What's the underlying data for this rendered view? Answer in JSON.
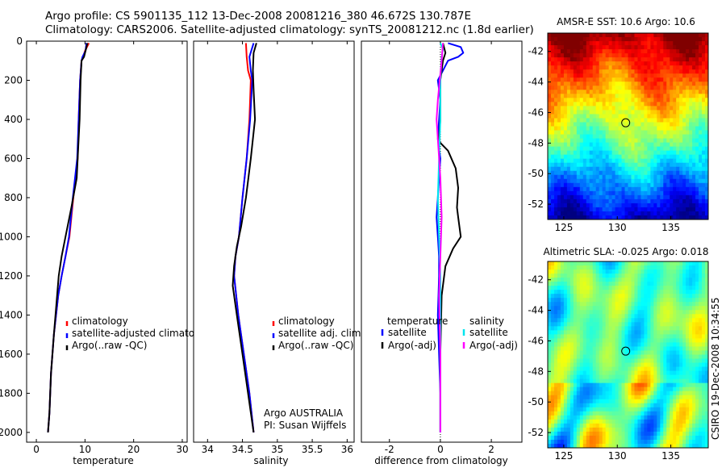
{
  "header": {
    "line1": "Argo profile: CS 5901135_112 13-Dec-2008 20081216_380 46.672S 130.787E",
    "line2": "Climatology: CARS2006. Satellite-adjusted climatology: synTS_20081212.nc (1.8d earlier)"
  },
  "side_label": "CSIRO 19-Dec-2008 10:34:55",
  "colors": {
    "clim": "#ff0000",
    "sat": "#0000ff",
    "argo": "#000000",
    "salsat": "#00e5ee",
    "salargo": "#ff00ff"
  },
  "chart_data": [
    {
      "type": "line",
      "id": "temperature",
      "xlabel": "temperature",
      "xlim": [
        -2,
        31
      ],
      "ylim": [
        0,
        2050
      ],
      "yreverse": true,
      "xticks": [
        "0",
        "10",
        "20",
        "30"
      ],
      "xtick_values": [
        0,
        10,
        20,
        30
      ],
      "yticks": [
        "0",
        "200",
        "400",
        "600",
        "800",
        "1000",
        "1200",
        "1400",
        "1600",
        "1800",
        "2000"
      ],
      "ytick_values": [
        0,
        200,
        400,
        600,
        800,
        1000,
        1200,
        1400,
        1600,
        1800,
        2000
      ],
      "legend": [
        "climatology",
        "satellite-adjusted climatology",
        "Argo(..raw -QC)"
      ],
      "series": [
        {
          "name": "climatology",
          "color": "clim",
          "x": [
            10.8,
            10.0,
            9.6,
            9.3,
            9.0,
            8.7,
            8.5,
            7.6,
            6.8,
            6.0,
            5.2,
            4.5,
            3.6,
            3.0,
            2.7,
            2.4
          ],
          "y": [
            10,
            50,
            80,
            100,
            200,
            400,
            600,
            800,
            1000,
            1100,
            1200,
            1300,
            1500,
            1700,
            1900,
            2000
          ]
        },
        {
          "name": "satellite-adjusted climatology",
          "color": "sat",
          "x": [
            10.3,
            10.1,
            9.5,
            9.3,
            9.0,
            8.7,
            8.4,
            7.5,
            6.7,
            6.0,
            5.2,
            4.5,
            3.6,
            3.0,
            2.7,
            2.4
          ],
          "y": [
            10,
            50,
            80,
            100,
            200,
            400,
            600,
            800,
            1000,
            1100,
            1200,
            1300,
            1500,
            1700,
            1900,
            2000
          ]
        },
        {
          "name": "Argo(..raw -QC)",
          "color": "argo",
          "x": [
            10.5,
            10.2,
            9.8,
            9.3,
            9.1,
            8.9,
            8.6,
            8.3,
            7.2,
            6.0,
            5.2,
            4.6,
            3.6,
            3.0,
            2.7,
            2.4
          ],
          "y": [
            10,
            40,
            80,
            100,
            200,
            400,
            550,
            700,
            850,
            1000,
            1100,
            1200,
            1500,
            1700,
            1900,
            2000
          ]
        }
      ]
    },
    {
      "type": "line",
      "id": "salinity",
      "xlabel": "salinity",
      "xlim": [
        33.8,
        36.1
      ],
      "ylim": [
        0,
        2050
      ],
      "yreverse": true,
      "xticks": [
        "34",
        "34.5",
        "35",
        "35.5",
        "36"
      ],
      "xtick_values": [
        34,
        34.5,
        35,
        35.5,
        36
      ],
      "legend": [
        "climatology",
        "satellite adj. clim.",
        "Argo(..raw -QC)"
      ],
      "annotation": [
        "Argo AUSTRALIA",
        "PI: Susan Wijffels"
      ],
      "series": [
        {
          "name": "climatology",
          "color": "clim",
          "x": [
            34.55,
            34.56,
            34.58,
            34.62,
            34.6,
            34.56,
            34.5,
            34.45,
            34.4,
            34.38,
            34.44,
            34.52,
            34.6,
            34.66
          ],
          "y": [
            10,
            80,
            150,
            200,
            400,
            600,
            800,
            1000,
            1100,
            1200,
            1400,
            1600,
            1800,
            2000
          ]
        },
        {
          "name": "satellite adj. clim.",
          "color": "sat",
          "x": [
            34.66,
            34.6,
            34.62,
            34.64,
            34.61,
            34.56,
            34.5,
            34.45,
            34.4,
            34.38,
            34.44,
            34.52,
            34.6,
            34.66
          ],
          "y": [
            10,
            80,
            150,
            200,
            400,
            600,
            800,
            1000,
            1100,
            1200,
            1400,
            1600,
            1800,
            2000
          ]
        },
        {
          "name": "Argo(..raw -QC)",
          "color": "argo",
          "x": [
            34.7,
            34.66,
            34.65,
            34.66,
            34.68,
            34.62,
            34.55,
            34.48,
            34.42,
            34.38,
            34.36,
            34.42,
            34.5,
            34.58,
            34.66
          ],
          "y": [
            10,
            60,
            150,
            250,
            400,
            600,
            800,
            950,
            1050,
            1150,
            1250,
            1400,
            1600,
            1800,
            2000
          ]
        }
      ]
    },
    {
      "type": "line",
      "id": "difference",
      "xlabel": "difference from climatology",
      "xlim": [
        -3.1,
        3.2
      ],
      "ylim": [
        0,
        2050
      ],
      "yreverse": true,
      "xticks": [
        "-2",
        "0",
        "2"
      ],
      "xtick_values": [
        -2,
        0,
        2
      ],
      "legend_temperature": [
        "temperature",
        "satellite",
        "Argo(-adj)"
      ],
      "legend_salinity": [
        "salinity",
        "satellite",
        "Argo(-adj)"
      ],
      "series": [
        {
          "name": "temperature satellite",
          "color": "sat",
          "x": [
            0.3,
            0.8,
            0.9,
            0.7,
            0.3,
            0.1,
            -0.1,
            0.0,
            -0.1,
            0.0,
            -0.1,
            -0.15,
            -0.1,
            -0.05,
            -0.05,
            -0.1,
            -0.05,
            0.0,
            0.0
          ],
          "y": [
            10,
            30,
            60,
            80,
            100,
            150,
            200,
            300,
            500,
            600,
            800,
            900,
            1000,
            1100,
            1200,
            1400,
            1600,
            1800,
            2000
          ]
        },
        {
          "name": "temperature Argo(-adj)",
          "color": "argo",
          "x": [
            0.1,
            0.2,
            0.1,
            0.0,
            0.0,
            -0.05,
            0.0,
            0.3,
            0.6,
            0.7,
            0.65,
            0.7,
            0.8,
            0.5,
            0.2,
            0.05,
            0.0,
            0.0
          ],
          "y": [
            10,
            60,
            100,
            200,
            400,
            500,
            520,
            560,
            650,
            750,
            850,
            900,
            1000,
            1060,
            1150,
            1300,
            1600,
            2000
          ]
        },
        {
          "name": "salinity satellite",
          "color": "salsat",
          "x": [
            0.0,
            0.1,
            0.05,
            0.0,
            0.0,
            -0.05,
            -0.1,
            -0.05,
            0.0,
            0.0,
            0.0,
            0.0
          ],
          "y": [
            10,
            40,
            80,
            200,
            400,
            600,
            800,
            1000,
            1200,
            1400,
            1700,
            2000
          ]
        },
        {
          "name": "salinity Argo(-adj)",
          "color": "salargo",
          "x": [
            0.1,
            0.05,
            -0.1,
            -0.15,
            -0.1,
            0.0,
            0.05,
            0.0,
            -0.05,
            0.0,
            0.0
          ],
          "y": [
            10,
            100,
            300,
            400,
            500,
            700,
            900,
            1100,
            1300,
            1600,
            2000
          ]
        }
      ]
    },
    {
      "type": "heatmap",
      "id": "sst-map",
      "title": "AMSR-E SST: 10.6  Argo: 10.6",
      "xlim": [
        123.5,
        138.5
      ],
      "ylim": [
        -53,
        -40.8
      ],
      "xticks": [
        "125",
        "130",
        "135"
      ],
      "xtick_values": [
        125,
        130,
        135
      ],
      "yticks": [
        "-42",
        "-44",
        "-46",
        "-48",
        "-50",
        "-52"
      ],
      "ytick_values": [
        -42,
        -44,
        -46,
        -48,
        -50,
        -52
      ],
      "marker": {
        "lon": 130.787,
        "lat": -46.672
      },
      "field": {
        "sst_north": 15.5,
        "sst_south": 4.0
      }
    },
    {
      "type": "heatmap",
      "id": "sla-map",
      "title": "Altimetric SLA: -0.025  Argo: 0.018",
      "xlim": [
        123.5,
        138.5
      ],
      "ylim": [
        -53,
        -40.8
      ],
      "xticks": [
        "125",
        "130",
        "135"
      ],
      "xtick_values": [
        125,
        130,
        135
      ],
      "yticks": [
        "-42",
        "-44",
        "-46",
        "-48",
        "-50",
        "-52"
      ],
      "ytick_values": [
        -42,
        -44,
        -46,
        -48,
        -50,
        -52
      ],
      "marker": {
        "lon": 130.787,
        "lat": -46.672
      }
    }
  ]
}
